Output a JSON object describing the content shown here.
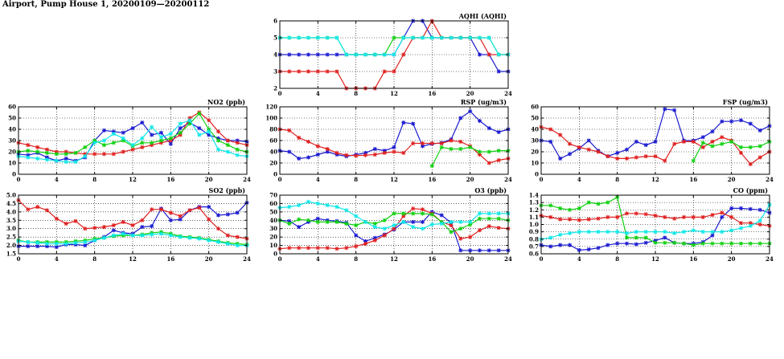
{
  "page": {
    "title": "Airport, Pump House 1, 20200109—20200112"
  },
  "colors": {
    "blue": "#1a1ad0",
    "red": "#e02020",
    "green": "#10d010",
    "cyan": "#10e8e8"
  },
  "chart_data": [
    {
      "id": "aqhi",
      "type": "line",
      "title": "AQHI (AQHI)",
      "xlim": [
        0,
        24
      ],
      "ylim": [
        2,
        6
      ],
      "xticks": [
        0,
        4,
        8,
        12,
        16,
        20,
        24
      ],
      "yticks": [
        2,
        3,
        4,
        5,
        6
      ],
      "x": [
        0,
        1,
        2,
        3,
        4,
        5,
        6,
        7,
        8,
        9,
        10,
        11,
        12,
        13,
        14,
        15,
        16,
        17,
        18,
        19,
        20,
        21,
        22,
        23,
        24
      ],
      "series": [
        {
          "name": "blue",
          "color": "#1a1ad0",
          "values": [
            4,
            4,
            4,
            4,
            4,
            4,
            4,
            4,
            4,
            4,
            4,
            4,
            4,
            5,
            6,
            6,
            5,
            5,
            5,
            5,
            5,
            4,
            4,
            3,
            3
          ]
        },
        {
          "name": "red",
          "color": "#e02020",
          "values": [
            3,
            3,
            3,
            3,
            3,
            3,
            3,
            2,
            2,
            2,
            2,
            3,
            3,
            4,
            5,
            5,
            6,
            5,
            5,
            5,
            5,
            5,
            4,
            4,
            4
          ]
        },
        {
          "name": "green",
          "color": "#10d010",
          "values": [
            5,
            5,
            5,
            5,
            5,
            5,
            5,
            4,
            4,
            4,
            4,
            4,
            5,
            5,
            5,
            5,
            5,
            5,
            5,
            5,
            5,
            5,
            5,
            4,
            4
          ]
        },
        {
          "name": "cyan",
          "color": "#10e8e8",
          "values": [
            5,
            5,
            5,
            5,
            5,
            5,
            5,
            4,
            4,
            4,
            4,
            4,
            4,
            5,
            5,
            5,
            5,
            5,
            5,
            5,
            5,
            5,
            5,
            4,
            4
          ]
        }
      ]
    },
    {
      "id": "no2",
      "type": "line",
      "title": "NO2 (ppb)",
      "xlim": [
        0,
        24
      ],
      "ylim": [
        0,
        60
      ],
      "xticks": [
        0,
        4,
        8,
        12,
        16,
        20,
        24
      ],
      "yticks": [
        0,
        10,
        20,
        30,
        40,
        50,
        60
      ],
      "x": [
        0,
        1,
        2,
        3,
        4,
        5,
        6,
        7,
        8,
        9,
        10,
        11,
        12,
        13,
        14,
        15,
        16,
        17,
        18,
        19,
        20,
        21,
        22,
        23,
        24
      ],
      "series": [
        {
          "name": "blue",
          "color": "#1a1ad0",
          "values": [
            18,
            17,
            19,
            15,
            12,
            14,
            12,
            15,
            30,
            39,
            38,
            37,
            41,
            46,
            35,
            37,
            27,
            41,
            46,
            41,
            35,
            32,
            30,
            30,
            29
          ]
        },
        {
          "name": "red",
          "color": "#e02020",
          "values": [
            28,
            26,
            24,
            22,
            20,
            20,
            19,
            18,
            18,
            18,
            18,
            20,
            22,
            24,
            26,
            28,
            30,
            35,
            50,
            55,
            48,
            38,
            30,
            28,
            26
          ]
        },
        {
          "name": "green",
          "color": "#10d010",
          "values": [
            20,
            21,
            20,
            19,
            18,
            18,
            19,
            24,
            30,
            26,
            28,
            30,
            25,
            28,
            28,
            30,
            32,
            37,
            45,
            54,
            40,
            30,
            26,
            22,
            20
          ]
        },
        {
          "name": "cyan",
          "color": "#10e8e8",
          "values": [
            16,
            15,
            14,
            13,
            12,
            11,
            11,
            16,
            28,
            30,
            36,
            32,
            26,
            32,
            42,
            33,
            36,
            45,
            48,
            35,
            38,
            22,
            20,
            17,
            16
          ]
        }
      ]
    },
    {
      "id": "rsp",
      "type": "line",
      "title": "RSP (ug/m3)",
      "xlim": [
        0,
        24
      ],
      "ylim": [
        0,
        120
      ],
      "xticks": [
        0,
        4,
        8,
        12,
        16,
        20,
        24
      ],
      "yticks": [
        0,
        20,
        40,
        60,
        80,
        100,
        120
      ],
      "x": [
        0,
        1,
        2,
        3,
        4,
        5,
        6,
        7,
        8,
        9,
        10,
        11,
        12,
        13,
        14,
        15,
        16,
        17,
        18,
        19,
        20,
        21,
        22,
        23,
        24
      ],
      "series": [
        {
          "name": "blue",
          "color": "#1a1ad0",
          "values": [
            42,
            40,
            28,
            30,
            35,
            40,
            35,
            32,
            35,
            38,
            45,
            42,
            48,
            92,
            90,
            50,
            54,
            56,
            62,
            100,
            112,
            95,
            82,
            75,
            80
          ]
        },
        {
          "name": "red",
          "color": "#e02020",
          "values": [
            80,
            78,
            65,
            58,
            50,
            45,
            38,
            34,
            33,
            34,
            35,
            38,
            40,
            38,
            55,
            55,
            55,
            55,
            60,
            58,
            50,
            35,
            20,
            25,
            28
          ]
        },
        {
          "name": "green",
          "color": "#10d010",
          "values": [
            null,
            null,
            null,
            null,
            null,
            null,
            null,
            null,
            null,
            null,
            null,
            null,
            null,
            null,
            null,
            null,
            15,
            48,
            45,
            45,
            48,
            40,
            40,
            42,
            42
          ]
        },
        {
          "name": "cyan",
          "color": "#10e8e8",
          "values": [
            null,
            null,
            null,
            null,
            null,
            null,
            null,
            null,
            null,
            null,
            null,
            null,
            null,
            null,
            null,
            null,
            null,
            null,
            null,
            null,
            null,
            null,
            null,
            null,
            null
          ]
        }
      ]
    },
    {
      "id": "fsp",
      "type": "line",
      "title": "FSP (ug/m3)",
      "xlim": [
        0,
        24
      ],
      "ylim": [
        0,
        60
      ],
      "xticks": [
        0,
        4,
        8,
        12,
        16,
        20,
        24
      ],
      "yticks": [
        0,
        10,
        20,
        30,
        40,
        50,
        60
      ],
      "x": [
        0,
        1,
        2,
        3,
        4,
        5,
        6,
        7,
        8,
        9,
        10,
        11,
        12,
        13,
        14,
        15,
        16,
        17,
        18,
        19,
        20,
        21,
        22,
        23,
        24
      ],
      "series": [
        {
          "name": "blue",
          "color": "#1a1ad0",
          "values": [
            30,
            29,
            14,
            18,
            23,
            30,
            21,
            16,
            19,
            22,
            29,
            26,
            29,
            58,
            57,
            30,
            30,
            33,
            38,
            47,
            47,
            48,
            45,
            39,
            43
          ]
        },
        {
          "name": "red",
          "color": "#e02020",
          "values": [
            42,
            40,
            35,
            27,
            24,
            22,
            20,
            16,
            14,
            14,
            15,
            16,
            16,
            12,
            27,
            29,
            29,
            24,
            29,
            33,
            30,
            19,
            9,
            15,
            20
          ]
        },
        {
          "name": "green",
          "color": "#10d010",
          "values": [
            null,
            null,
            null,
            null,
            null,
            null,
            null,
            null,
            null,
            null,
            null,
            null,
            null,
            null,
            null,
            null,
            12,
            28,
            25,
            27,
            29,
            24,
            24,
            25,
            29
          ]
        },
        {
          "name": "cyan",
          "color": "#10e8e8",
          "values": [
            null,
            null,
            null,
            null,
            null,
            null,
            null,
            null,
            null,
            null,
            null,
            null,
            null,
            null,
            null,
            null,
            null,
            null,
            null,
            null,
            null,
            null,
            null,
            null,
            null
          ]
        }
      ]
    },
    {
      "id": "so2",
      "type": "line",
      "title": "SO2 (ppb)",
      "xlim": [
        0,
        24
      ],
      "ylim": [
        1.5,
        5.0
      ],
      "xticks": [
        0,
        4,
        8,
        12,
        16,
        20,
        24
      ],
      "yticks": [
        1.5,
        2.0,
        2.5,
        3.0,
        3.5,
        4.0,
        4.5,
        5.0
      ],
      "x": [
        0,
        1,
        2,
        3,
        4,
        5,
        6,
        7,
        8,
        9,
        10,
        11,
        12,
        13,
        14,
        15,
        16,
        17,
        18,
        19,
        20,
        21,
        22,
        23,
        24
      ],
      "series": [
        {
          "name": "blue",
          "color": "#1a1ad0",
          "values": [
            1.95,
            1.95,
            1.95,
            1.95,
            1.9,
            2.05,
            2.05,
            2.0,
            2.3,
            2.5,
            2.9,
            2.75,
            2.7,
            3.1,
            3.15,
            4.2,
            3.5,
            3.55,
            4.1,
            4.3,
            4.3,
            3.8,
            3.85,
            3.95,
            4.55
          ]
        },
        {
          "name": "red",
          "color": "#e02020",
          "values": [
            4.7,
            4.15,
            4.3,
            4.1,
            3.6,
            3.3,
            3.45,
            3.0,
            3.05,
            3.1,
            3.2,
            3.4,
            3.2,
            3.5,
            4.15,
            4.15,
            3.95,
            3.75,
            4.1,
            4.25,
            3.55,
            3.0,
            2.6,
            2.5,
            2.4
          ]
        },
        {
          "name": "green",
          "color": "#10d010",
          "values": [
            2.3,
            2.2,
            2.2,
            2.2,
            2.2,
            2.2,
            2.25,
            2.3,
            2.4,
            2.45,
            2.55,
            2.6,
            2.6,
            2.65,
            2.75,
            2.8,
            2.7,
            2.55,
            2.5,
            2.45,
            2.35,
            2.25,
            2.15,
            2.1,
            2.05
          ]
        },
        {
          "name": "cyan",
          "color": "#10e8e8",
          "values": [
            2.25,
            2.2,
            2.15,
            2.1,
            2.1,
            2.1,
            2.15,
            2.2,
            2.3,
            2.45,
            2.6,
            2.7,
            2.6,
            2.6,
            2.65,
            2.7,
            2.6,
            2.5,
            2.45,
            2.4,
            2.3,
            2.2,
            2.1,
            2.0,
            2.0
          ]
        }
      ]
    },
    {
      "id": "o3",
      "type": "line",
      "title": "O3 (ppb)",
      "xlim": [
        0,
        24
      ],
      "ylim": [
        0,
        70
      ],
      "xticks": [
        0,
        4,
        8,
        12,
        16,
        20,
        24
      ],
      "yticks": [
        0,
        10,
        20,
        30,
        40,
        50,
        60,
        70
      ],
      "x": [
        0,
        1,
        2,
        3,
        4,
        5,
        6,
        7,
        8,
        9,
        10,
        11,
        12,
        13,
        14,
        15,
        16,
        17,
        18,
        19,
        20,
        21,
        22,
        23,
        24
      ],
      "series": [
        {
          "name": "blue",
          "color": "#1a1ad0",
          "values": [
            40,
            39,
            32,
            38,
            42,
            40,
            39,
            37,
            22,
            15,
            19,
            23,
            29,
            38,
            38,
            38,
            50,
            46,
            37,
            4,
            4,
            4,
            4,
            4,
            4
          ]
        },
        {
          "name": "red",
          "color": "#e02020",
          "values": [
            6,
            7,
            7,
            7,
            7,
            7,
            6,
            7,
            9,
            12,
            16,
            22,
            30,
            45,
            54,
            53,
            48,
            38,
            34,
            18,
            20,
            28,
            33,
            31,
            30
          ]
        },
        {
          "name": "green",
          "color": "#10d010",
          "values": [
            40,
            36,
            41,
            40,
            38,
            38,
            38,
            36,
            34,
            38,
            36,
            40,
            48,
            48,
            48,
            48,
            47,
            38,
            26,
            30,
            35,
            42,
            42,
            42,
            40
          ]
        },
        {
          "name": "cyan",
          "color": "#10e8e8",
          "values": [
            55,
            56,
            58,
            62,
            60,
            58,
            56,
            52,
            45,
            38,
            32,
            30,
            34,
            38,
            32,
            30,
            35,
            36,
            38,
            38,
            38,
            48,
            48,
            48,
            48
          ]
        }
      ]
    },
    {
      "id": "co",
      "type": "line",
      "title": "CO (ppm)",
      "xlim": [
        0,
        24
      ],
      "ylim": [
        0.6,
        1.4
      ],
      "xticks": [
        0,
        4,
        8,
        12,
        16,
        20,
        24
      ],
      "yticks": [
        0.6,
        0.7,
        0.8,
        0.9,
        1.0,
        1.1,
        1.2,
        1.3,
        1.4
      ],
      "x": [
        0,
        1,
        2,
        3,
        4,
        5,
        6,
        7,
        8,
        9,
        10,
        11,
        12,
        13,
        14,
        15,
        16,
        17,
        18,
        19,
        20,
        21,
        22,
        23,
        24
      ],
      "series": [
        {
          "name": "blue",
          "color": "#1a1ad0",
          "values": [
            0.72,
            0.7,
            0.72,
            0.72,
            0.65,
            0.66,
            0.68,
            0.72,
            0.74,
            0.74,
            0.73,
            0.75,
            0.78,
            0.82,
            0.75,
            0.74,
            0.74,
            0.76,
            0.85,
            1.1,
            1.22,
            1.22,
            1.21,
            1.2,
            1.16
          ]
        },
        {
          "name": "red",
          "color": "#e02020",
          "values": [
            1.12,
            1.1,
            1.07,
            1.07,
            1.06,
            1.07,
            1.08,
            1.1,
            1.1,
            1.15,
            1.15,
            1.14,
            1.12,
            1.1,
            1.08,
            1.1,
            1.1,
            1.1,
            1.13,
            1.16,
            1.1,
            1.02,
            1.02,
            1.0,
            0.98
          ]
        },
        {
          "name": "green",
          "color": "#10d010",
          "values": [
            1.26,
            1.26,
            1.22,
            1.2,
            1.22,
            1.3,
            1.28,
            1.3,
            1.37,
            0.82,
            0.82,
            0.82,
            0.75,
            0.75,
            0.75,
            0.74,
            0.72,
            0.74,
            0.74,
            0.74,
            0.74,
            0.74,
            0.74,
            0.74,
            0.74
          ]
        },
        {
          "name": "cyan",
          "color": "#10e8e8",
          "values": [
            0.8,
            0.82,
            0.86,
            0.88,
            0.9,
            0.9,
            0.9,
            0.9,
            0.9,
            0.88,
            0.9,
            0.9,
            0.9,
            0.9,
            0.88,
            0.9,
            0.92,
            0.9,
            0.9,
            0.9,
            0.92,
            0.95,
            0.98,
            1.05,
            1.27
          ]
        }
      ]
    }
  ]
}
